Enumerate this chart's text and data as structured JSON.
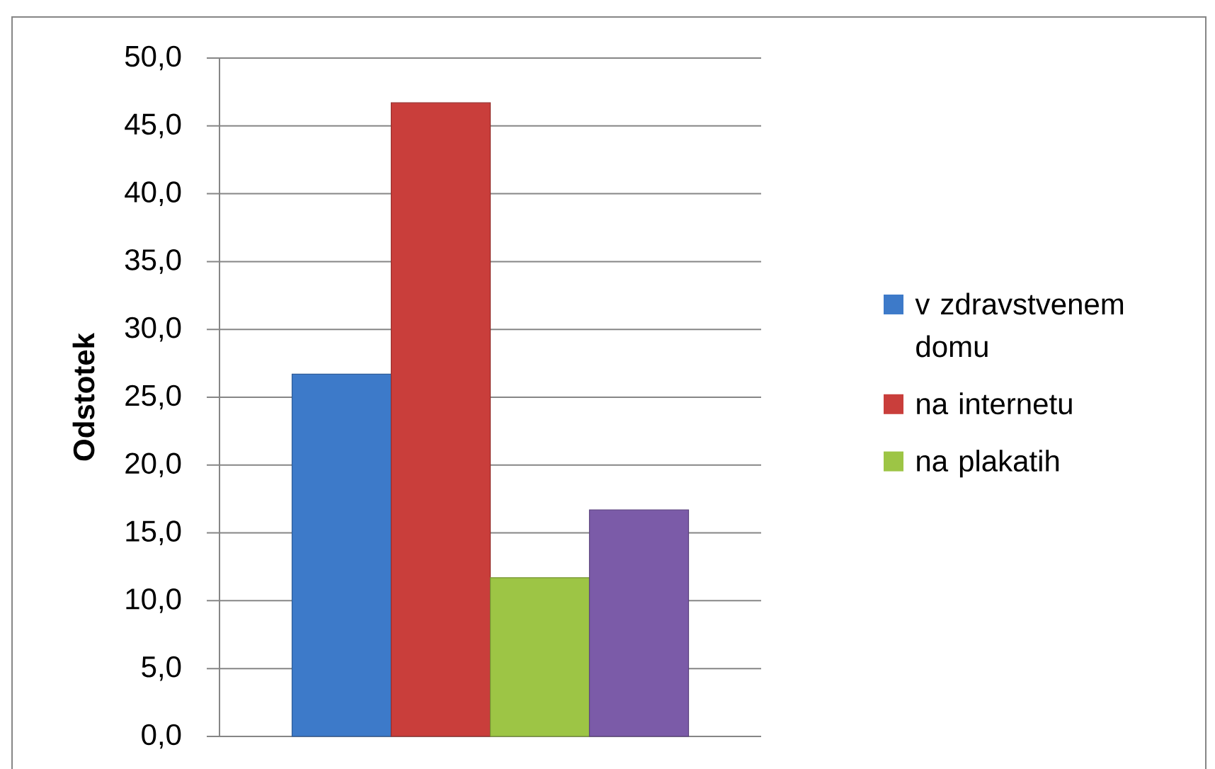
{
  "chart_data": {
    "type": "bar",
    "ylabel": "Odstotek",
    "categories": [
      null
    ],
    "series": [
      {
        "name": "v zdravstvenem domu",
        "color": "#3d7ac9",
        "values": [
          26.7
        ]
      },
      {
        "name": "na internetu",
        "color": "#c93e3b",
        "values": [
          46.7
        ]
      },
      {
        "name": "na plakatih",
        "color": "#9dc545",
        "values": [
          11.7
        ]
      },
      {
        "color": "#7b5ba8",
        "values": [
          16.7
        ]
      }
    ],
    "ylim": [
      0,
      50
    ],
    "yticks": [
      {
        "value": 0,
        "label": "0,0"
      },
      {
        "value": 5,
        "label": "5,0"
      },
      {
        "value": 10,
        "label": "10,0"
      },
      {
        "value": 15,
        "label": "15,0"
      },
      {
        "value": 20,
        "label": "20,0"
      },
      {
        "value": 25,
        "label": "25,0"
      },
      {
        "value": 30,
        "label": "30,0"
      },
      {
        "value": 35,
        "label": "35,0"
      },
      {
        "value": 40,
        "label": "40,0"
      },
      {
        "value": 45,
        "label": "45,0"
      },
      {
        "value": 50,
        "label": "50,0"
      }
    ],
    "grid": "y",
    "legend": "right"
  }
}
